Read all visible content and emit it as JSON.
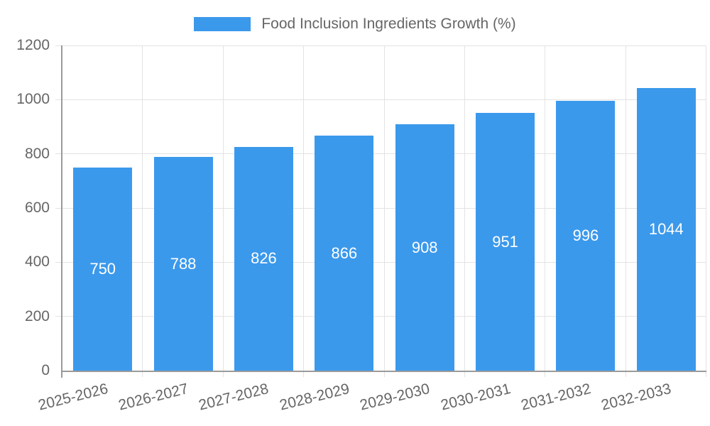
{
  "chart_data": {
    "type": "bar",
    "title": "",
    "legend": {
      "position": "top",
      "label": "Food Inclusion Ingredients Growth (%)"
    },
    "categories": [
      "2025-2026",
      "2026-2027",
      "2027-2028",
      "2028-2029",
      "2029-2030",
      "2030-2031",
      "2031-2032",
      "2032-2033"
    ],
    "values": [
      750,
      788,
      826,
      866,
      908,
      951,
      996,
      1044
    ],
    "xlabel": "",
    "ylabel": "",
    "ylim": [
      0,
      1200
    ],
    "yticks": [
      0,
      200,
      400,
      600,
      800,
      1000,
      1200
    ],
    "grid": true,
    "x_label_rotation_deg": -14,
    "colors": {
      "bar": "#3B99EC",
      "value_label": "#FFFFFF",
      "tick_text": "#666666",
      "legend_text": "#666666",
      "gridline": "#E3E3E3",
      "axis_line": "#9A9A9A",
      "background": "#FFFFFF"
    }
  }
}
